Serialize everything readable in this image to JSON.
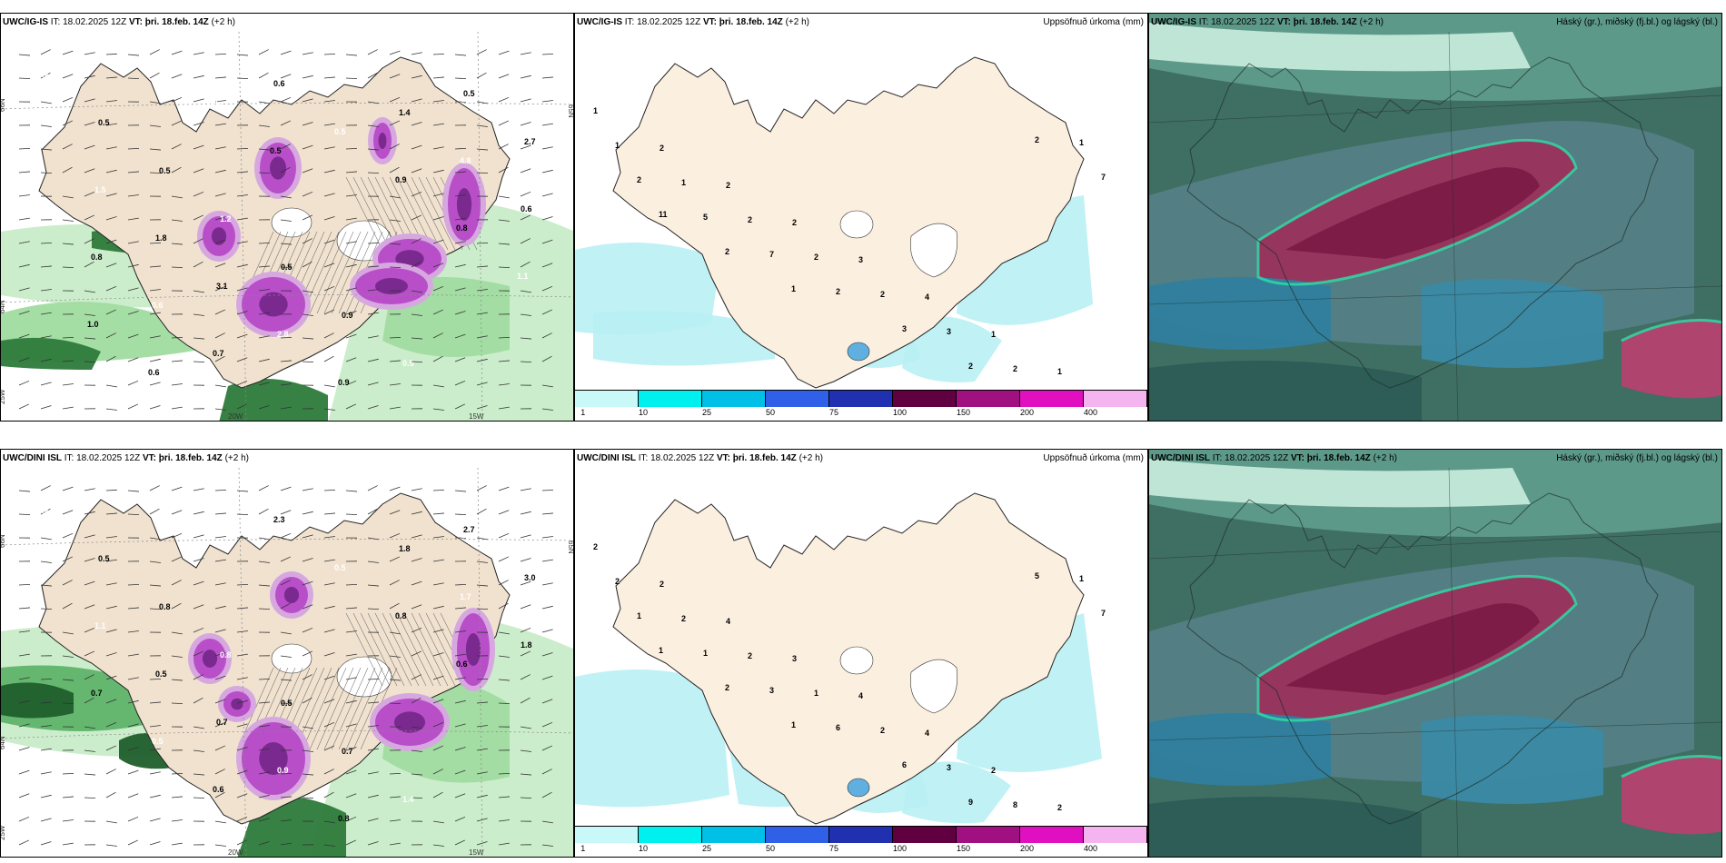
{
  "panels": {
    "r1c1": {
      "model": "UWC/IG-IS",
      "it": "IT: 18.02.2025 12Z",
      "vt_label": "VT:",
      "vt": "þri. 18.feb. 14Z",
      "lead": "(+2 h)",
      "right": ""
    },
    "r1c2": {
      "model": "UWC/IG-IS",
      "it": "IT: 18.02.2025 12Z",
      "vt_label": "VT:",
      "vt": "þri. 18.feb. 14Z",
      "lead": "(+2 h)",
      "right": "Uppsöfnuð úrkoma (mm)"
    },
    "r1c3": {
      "model": "UWC/IG-IS",
      "it": "IT: 18.02.2025 12Z",
      "vt_label": "VT:",
      "vt": "þri. 18.feb. 14Z",
      "lead": "(+2 h)",
      "right": "Háský (gr.), miðský (fj.bl.) og lágský (bl.)"
    },
    "r2c1": {
      "model": "UWC/DINI ISL",
      "it": "IT: 18.02.2025 12Z",
      "vt_label": "VT:",
      "vt": "þri. 18.feb. 14Z",
      "lead": "(+2 h)",
      "right": ""
    },
    "r2c2": {
      "model": "UWC/DINI ISL",
      "it": "IT: 18.02.2025 12Z",
      "vt_label": "VT:",
      "vt": "þri. 18.feb. 14Z",
      "lead": "(+2 h)",
      "right": "Uppsöfnuð úrkoma (mm)"
    },
    "r2c3": {
      "model": "UWC/DINI ISL",
      "it": "IT: 18.02.2025 12Z",
      "vt_label": "VT:",
      "vt": "þri. 18.feb. 14Z",
      "lead": "(+2 h)",
      "right": "Háský (gr.), miðský (fj.bl.) og lágský (bl.)"
    }
  },
  "coords": {
    "lat_66": "66N",
    "lat_64": "64N",
    "lat_65": "65N",
    "lon_20": "20W",
    "lon_15": "15W",
    "lon_25": "25W"
  },
  "legend": {
    "ticks": [
      "1",
      "10",
      "25",
      "50",
      "75",
      "100",
      "150",
      "200",
      "400"
    ],
    "colors": [
      "#c8f8f8",
      "#00f0f0",
      "#00c0e8",
      "#3060e8",
      "#2030b0",
      "#600040",
      "#a01080",
      "#e010c0",
      "#f4b4f0"
    ]
  },
  "precip_labels_top": [
    "1",
    "2",
    "2",
    "2",
    "3",
    "4",
    "1",
    "1",
    "1",
    "1",
    "2",
    "2",
    "2",
    "3",
    "2",
    "1",
    "2",
    "5",
    "7",
    "2",
    "3",
    "2",
    "2",
    "7",
    "11",
    "2",
    "1"
  ],
  "precip_labels_bottom": [
    "2",
    "2",
    "4",
    "3",
    "4",
    "4",
    "2",
    "2",
    "2",
    "2",
    "2",
    "1",
    "2",
    "3",
    "8",
    "1",
    "1",
    "1",
    "3",
    "6",
    "6",
    "9",
    "5",
    "7",
    "1",
    "2",
    "1"
  ],
  "snow_labels_top": [
    "0.4",
    "0.5",
    "0.5",
    "1.2",
    "0.5",
    "0.9",
    "0.5",
    "0.5",
    "2.7",
    "1.5",
    "1.8",
    "3.1",
    "2.8",
    "0.9",
    "1.4",
    "4.8",
    "0.6",
    "0.8",
    "0.6",
    "0.7",
    "0.6",
    "0.5",
    "0.9",
    "0.8",
    "1.1",
    "1.0",
    "0.6",
    "1.6",
    "0.5"
  ],
  "snow_labels_bottom": [
    "0.4",
    "0.5",
    "0.8",
    "0.8",
    "0.5",
    "0.7",
    "1.4",
    "2.7",
    "3.0",
    "1.1",
    "0.5",
    "0.7",
    "0.9",
    "0.8",
    "1.8",
    "1.7",
    "1.8",
    "0.7",
    "0.5",
    "0.6",
    "2.3",
    "0.5",
    "0.8",
    "0.6"
  ]
}
